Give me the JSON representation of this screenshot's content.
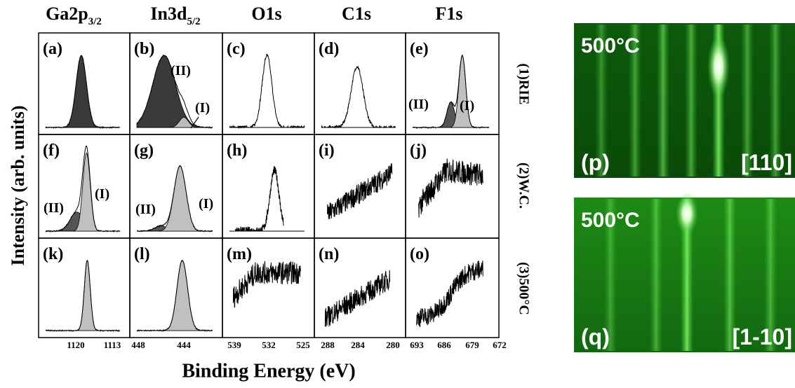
{
  "figure": {
    "columns": [
      {
        "base": "Ga2p",
        "sub": "3/2",
        "ticks": [
          "1120",
          "1113"
        ]
      },
      {
        "base": "In3d",
        "sub": "5/2",
        "ticks": [
          "448",
          "444"
        ]
      },
      {
        "base": "O1s",
        "ticks": [
          "539",
          "532",
          "525"
        ]
      },
      {
        "base": "C1s",
        "ticks": [
          "288",
          "284",
          "280"
        ]
      },
      {
        "base": "F1s",
        "ticks": [
          "693",
          "686",
          "679",
          "672"
        ]
      }
    ],
    "rows": [
      "(1)RIE",
      "(2)W.C.",
      "(3)500°C"
    ],
    "y_label": "Intensity (arb. units)",
    "x_label": "Binding Energy (eV)",
    "panels": [
      {
        "label": "(a)"
      },
      {
        "label": "(b)",
        "peak_labels": [
          "(II)",
          "(I)"
        ]
      },
      {
        "label": "(c)"
      },
      {
        "label": "(d)"
      },
      {
        "label": "(e)",
        "peak_labels": [
          "(II)",
          "(I)"
        ]
      },
      {
        "label": "(f)",
        "peak_labels": [
          "(II)",
          "(I)"
        ]
      },
      {
        "label": "(g)",
        "peak_labels": [
          "(II)",
          "(I)"
        ]
      },
      {
        "label": "(h)"
      },
      {
        "label": "(i)"
      },
      {
        "label": "(j)"
      },
      {
        "label": "(k)"
      },
      {
        "label": "(l)"
      },
      {
        "label": "(m)"
      },
      {
        "label": "(n)"
      },
      {
        "label": "(o)"
      }
    ],
    "rheed": [
      {
        "temperature": "500°C",
        "label": "(p)",
        "direction": "[110]"
      },
      {
        "temperature": "500°C",
        "label": "(q)",
        "direction": "[1-10]"
      }
    ]
  }
}
